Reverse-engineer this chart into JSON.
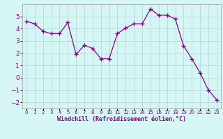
{
  "x": [
    0,
    1,
    2,
    3,
    4,
    5,
    6,
    7,
    8,
    9,
    10,
    11,
    12,
    13,
    14,
    15,
    16,
    17,
    18,
    19,
    20,
    21,
    22,
    23
  ],
  "y": [
    4.6,
    4.4,
    3.8,
    3.6,
    3.6,
    4.5,
    1.9,
    2.65,
    2.4,
    1.55,
    1.55,
    3.6,
    4.05,
    4.4,
    4.4,
    5.6,
    5.1,
    5.1,
    4.8,
    2.6,
    1.55,
    0.4,
    -1.0,
    -1.8
  ],
  "line_color": "#880088",
  "marker": "+",
  "marker_size": 4,
  "bg_color": "#d6f5f5",
  "grid_color": "#b8dede",
  "xlabel": "Windchill (Refroidissement éolien,°C)",
  "ylim": [
    -2.5,
    6.0
  ],
  "xlim": [
    -0.5,
    23.5
  ],
  "yticks": [
    -2,
    -1,
    0,
    1,
    2,
    3,
    4,
    5
  ],
  "xtick_labels": [
    "0",
    "1",
    "2",
    "3",
    "4",
    "5",
    "6",
    "7",
    "8",
    "9",
    "10",
    "11",
    "12",
    "13",
    "14",
    "15",
    "16",
    "17",
    "18",
    "19",
    "20",
    "21",
    "22",
    "23"
  ],
  "tick_color": "#880088",
  "xlabel_fontsize": 6.0,
  "ytick_fontsize": 6.5,
  "xtick_fontsize": 5.0
}
